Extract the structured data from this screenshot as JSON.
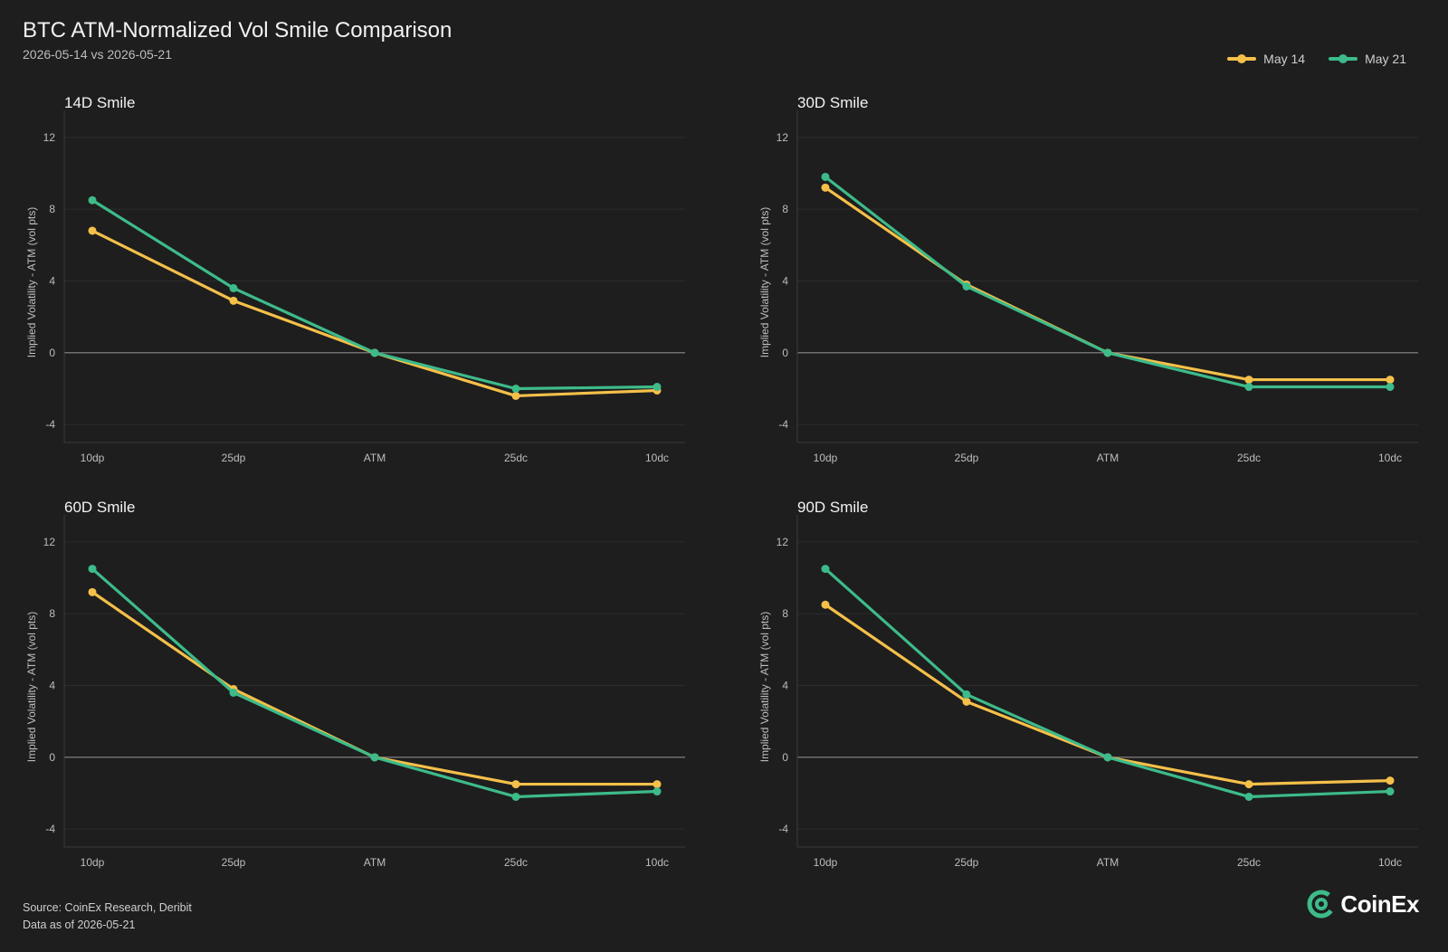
{
  "header": {
    "title": "BTC ATM-Normalized Vol Smile Comparison",
    "subtitle": "2026-05-14 vs 2026-05-21"
  },
  "legend": [
    {
      "name": "May 14",
      "color": "#f5c04a"
    },
    {
      "name": "May 21",
      "color": "#3dbb8a"
    }
  ],
  "footer": {
    "source": "Source: CoinEx Research, Deribit",
    "asof": "Data as of 2026-05-21"
  },
  "logo": {
    "text": "CoinEx",
    "icon": "coinex-logo-icon"
  },
  "chart_data": [
    {
      "type": "line",
      "title": "14D Smile",
      "ylabel": "Implied Volatility - ATM (vol pts)",
      "categories": [
        "10dp",
        "25dp",
        "ATM",
        "25dc",
        "10dc"
      ],
      "yticks": [
        -4,
        0,
        4,
        8,
        12
      ],
      "ylim": [
        -5,
        13
      ],
      "series": [
        {
          "name": "May 14",
          "values": [
            6.8,
            2.9,
            0,
            -2.4,
            -2.1
          ]
        },
        {
          "name": "May 21",
          "values": [
            8.5,
            3.6,
            0,
            -2.0,
            -1.9
          ]
        }
      ]
    },
    {
      "type": "line",
      "title": "30D Smile",
      "ylabel": "Implied Volatility - ATM (vol pts)",
      "categories": [
        "10dp",
        "25dp",
        "ATM",
        "25dc",
        "10dc"
      ],
      "yticks": [
        -4,
        0,
        4,
        8,
        12
      ],
      "ylim": [
        -5,
        13
      ],
      "series": [
        {
          "name": "May 14",
          "values": [
            9.2,
            3.8,
            0,
            -1.5,
            -1.5
          ]
        },
        {
          "name": "May 21",
          "values": [
            9.8,
            3.7,
            0,
            -1.9,
            -1.9
          ]
        }
      ]
    },
    {
      "type": "line",
      "title": "60D Smile",
      "ylabel": "Implied Volatility - ATM (vol pts)",
      "categories": [
        "10dp",
        "25dp",
        "ATM",
        "25dc",
        "10dc"
      ],
      "yticks": [
        -4,
        0,
        4,
        8,
        12
      ],
      "ylim": [
        -5,
        13
      ],
      "series": [
        {
          "name": "May 14",
          "values": [
            9.2,
            3.8,
            0,
            -1.5,
            -1.5
          ]
        },
        {
          "name": "May 21",
          "values": [
            10.5,
            3.6,
            0,
            -2.2,
            -1.9
          ]
        }
      ]
    },
    {
      "type": "line",
      "title": "90D Smile",
      "ylabel": "Implied Volatility - ATM (vol pts)",
      "categories": [
        "10dp",
        "25dp",
        "ATM",
        "25dc",
        "10dc"
      ],
      "yticks": [
        -4,
        0,
        4,
        8,
        12
      ],
      "ylim": [
        -5,
        13
      ],
      "series": [
        {
          "name": "May 14",
          "values": [
            8.5,
            3.1,
            0,
            -1.5,
            -1.3
          ]
        },
        {
          "name": "May 21",
          "values": [
            10.5,
            3.5,
            0,
            -2.2,
            -1.9
          ]
        }
      ]
    }
  ]
}
